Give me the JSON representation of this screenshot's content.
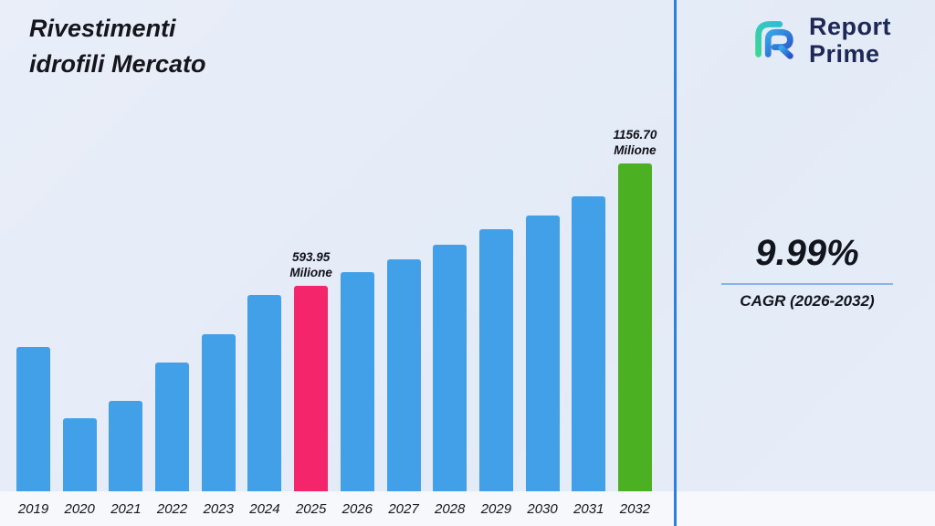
{
  "title": {
    "line1": "Rivestimenti",
    "line2": "idrofili Mercato"
  },
  "logo": {
    "line1": "Report",
    "line2": "Prime"
  },
  "stats": {
    "cagr_value": "9.99%",
    "cagr_label": "CAGR (2026-2032)"
  },
  "colors": {
    "bar_default": "#41a0e8",
    "bar_highlight_2025": "#f5256b",
    "bar_highlight_2032": "#4cb122",
    "divider_accent": "#2f7fe0",
    "logo_navy": "#1e2856",
    "logo_teal": "#3ed598",
    "logo_blue": "#2b6be4"
  },
  "chart_data": {
    "type": "bar",
    "title": "Rivestimenti idrofili Mercato",
    "unit": "Milione",
    "xlabel": "",
    "ylabel": "",
    "grid": false,
    "legend": false,
    "ylim": [
      0,
      1200
    ],
    "categories": [
      "2019",
      "2020",
      "2021",
      "2022",
      "2023",
      "2024",
      "2025",
      "2026",
      "2027",
      "2028",
      "2029",
      "2030",
      "2031",
      "2032"
    ],
    "values": [
      430,
      365,
      400,
      460,
      505,
      550,
      593.95,
      653.3,
      718.6,
      790.4,
      869.3,
      956.1,
      1051.6,
      1156.7
    ],
    "bar_height_pct": [
      43.9,
      22.3,
      27.7,
      39.4,
      47.8,
      59.8,
      62.8,
      66.8,
      70.7,
      75.1,
      79.9,
      84.1,
      89.9,
      100
    ],
    "highlight_colors": {
      "2025": "#f5256b",
      "2032": "#4cb122"
    },
    "value_labels": [
      {
        "category": "2025",
        "value": "593.95",
        "unit": "Milione"
      },
      {
        "category": "2032",
        "value": "1156.70",
        "unit": "Milione"
      }
    ]
  }
}
